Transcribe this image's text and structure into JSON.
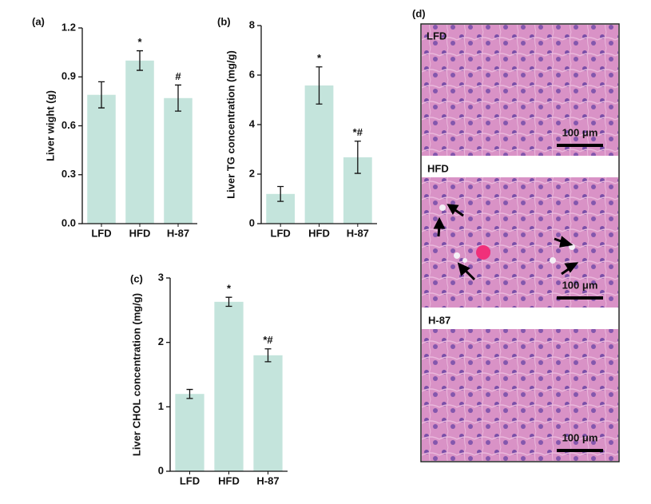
{
  "chart_data": [
    {
      "type": "bar",
      "panel_label": "(a)",
      "y_label": "Liver wight (g)",
      "categories": [
        "LFD",
        "HFD",
        "H-87"
      ],
      "values": [
        0.79,
        1.0,
        0.77
      ],
      "errors": [
        0.08,
        0.06,
        0.08
      ],
      "annotations": [
        null,
        "*",
        "#"
      ],
      "color": "#c4e4dc",
      "ylim": [
        0,
        1.2
      ],
      "yticks": [
        {
          "value": 0,
          "label": "0.0"
        },
        0.3,
        0.6,
        0.9,
        1.2
      ]
    },
    {
      "type": "bar",
      "panel_label": "(b)",
      "y_label": "Liver TG concentration (mg/g)",
      "categories": [
        "LFD",
        "HFD",
        "H-87"
      ],
      "values": [
        1.2,
        5.58,
        2.68
      ],
      "errors": [
        0.3,
        0.75,
        0.65
      ],
      "annotations": [
        null,
        "*",
        "*#"
      ],
      "color": "#c4e4dc",
      "ylim": [
        0,
        8
      ],
      "yticks": [
        0,
        2,
        4,
        6,
        8
      ]
    },
    {
      "type": "bar",
      "panel_label": "(c)",
      "y_label": "Liver CHOL concentration (mg/g)",
      "categories": [
        "LFD",
        "HFD",
        "H-87"
      ],
      "values": [
        1.2,
        2.63,
        1.8
      ],
      "errors": [
        0.07,
        0.07,
        0.1
      ],
      "annotations": [
        null,
        "*",
        "*#"
      ],
      "color": "#c4e4dc",
      "ylim": [
        0,
        3
      ],
      "yticks": [
        0,
        1,
        2,
        3
      ]
    }
  ],
  "image_panel": {
    "panel_label": "(d)",
    "sections": [
      {
        "label": "LFD",
        "scale_bar": "100 μm"
      },
      {
        "label": "HFD",
        "scale_bar": "100 μm"
      },
      {
        "label": "H-87",
        "scale_bar": "100 μm"
      }
    ]
  }
}
